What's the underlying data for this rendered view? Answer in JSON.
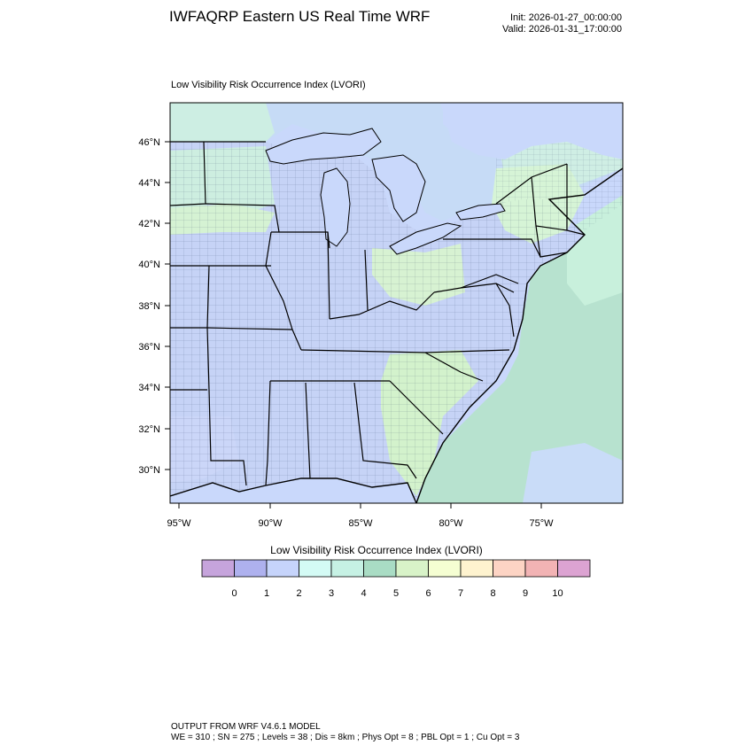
{
  "header": {
    "title": "IWFAQRP Eastern US Real Time WRF",
    "init": "Init: 2026-01-27_00:00:00",
    "valid": "Valid: 2026-01-31_17:00:00"
  },
  "map": {
    "field_title": "Low Visibility Risk Occurrence Index   (LVORI)",
    "lat_labels": [
      "46°N",
      "44°N",
      "42°N",
      "40°N",
      "38°N",
      "36°N",
      "34°N",
      "32°N",
      "30°N"
    ],
    "lon_labels": [
      "95°W",
      "90°W",
      "85°W",
      "80°W",
      "75°W"
    ],
    "colors": {
      "water": "#c9d8fb",
      "land_low": "#c6d3f6",
      "boundary": "#000000"
    }
  },
  "labelbar": {
    "title": "Low Visibility Risk Occurrence Index  (LVORI)",
    "colors": [
      "#c6a4dc",
      "#aeb1ee",
      "#c6d4fb",
      "#d4fbf5",
      "#c6f1e4",
      "#a9dcc4",
      "#d8f3c8",
      "#f5fed2",
      "#fef3cf",
      "#fdd4c4",
      "#f2b3b4",
      "#dca3d2"
    ],
    "labels": [
      "0",
      "1",
      "2",
      "3",
      "4",
      "5",
      "6",
      "7",
      "8",
      "9",
      "10"
    ]
  },
  "footer": {
    "line1": "OUTPUT FROM WRF V4.6.1 MODEL",
    "line2": "WE = 310 ; SN = 275 ; Levels = 38 ; Dis = 8km ; Phys Opt = 8 ; PBL Opt = 1 ; Cu Opt = 3"
  }
}
